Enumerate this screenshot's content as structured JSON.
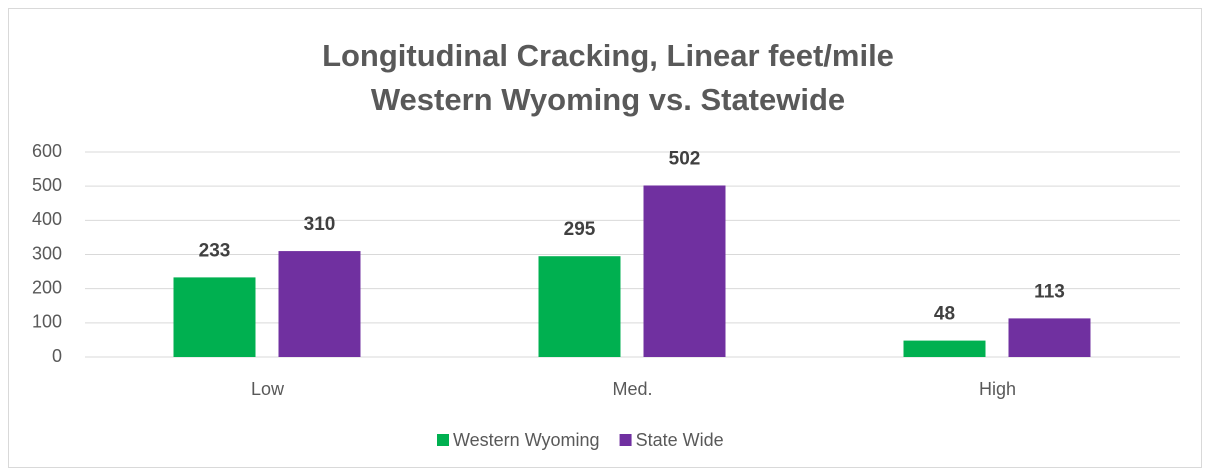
{
  "chart_data": {
    "type": "bar",
    "title": [
      "Longitudinal Cracking, Linear feet/mile",
      "Western Wyoming vs. Statewide"
    ],
    "categories": [
      "Low",
      "Med.",
      "High"
    ],
    "series": [
      {
        "name": "Western Wyoming",
        "color": "#00b050",
        "values": [
          233,
          295,
          48
        ]
      },
      {
        "name": "State Wide",
        "color": "#7030a0",
        "values": [
          310,
          502,
          113
        ]
      }
    ],
    "ylim": [
      0,
      600
    ],
    "yticks": [
      0,
      100,
      200,
      300,
      400,
      500,
      600
    ],
    "grid": true,
    "legend": "bottom"
  }
}
